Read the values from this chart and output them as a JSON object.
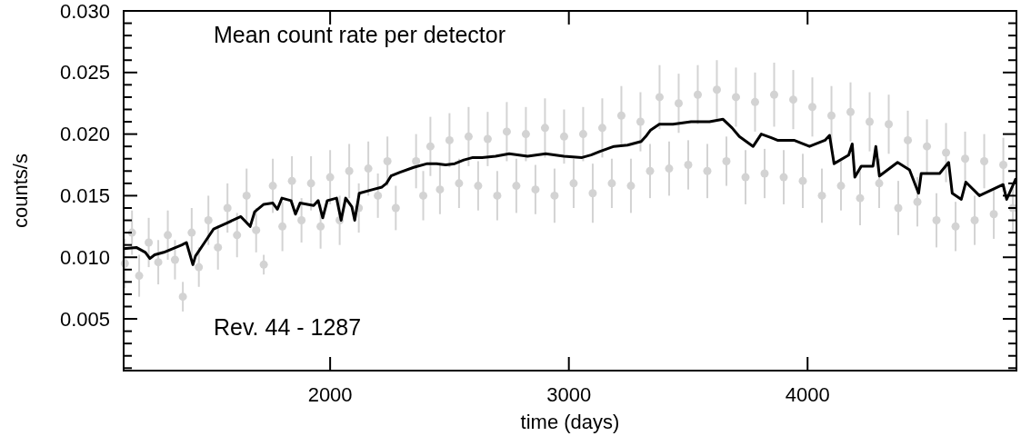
{
  "chart_data": {
    "type": "line",
    "title": "Mean count rate per detector",
    "xlabel": "time (days)",
    "ylabel": "counts/s",
    "annotations": [
      "Rev. 44 - 1287"
    ],
    "xlim": [
      1135,
      4875
    ],
    "xticks": [
      2000,
      3000,
      4000
    ],
    "ylim": [
      0.0008,
      0.03
    ],
    "yticks": [
      {
        "value": 0.001,
        "label": null
      },
      {
        "value": 0.002,
        "label": null
      },
      {
        "value": 0.003,
        "label": null
      },
      {
        "value": 0.004,
        "label": null
      },
      0.005,
      {
        "value": 0.006,
        "label": null
      },
      {
        "value": 0.007,
        "label": null
      },
      {
        "value": 0.008,
        "label": null
      },
      {
        "value": 0.009,
        "label": null
      },
      {
        "value": 0.01,
        "label": "0.010"
      },
      {
        "value": 0.011,
        "label": null
      },
      {
        "value": 0.012,
        "label": null
      },
      {
        "value": 0.013,
        "label": null
      },
      {
        "value": 0.014,
        "label": null
      },
      0.015,
      {
        "value": 0.016,
        "label": null
      },
      {
        "value": 0.017,
        "label": null
      },
      {
        "value": 0.018,
        "label": null
      },
      {
        "value": 0.019,
        "label": null
      },
      {
        "value": 0.02,
        "label": "0.020"
      },
      {
        "value": 0.021,
        "label": null
      },
      {
        "value": 0.022,
        "label": null
      },
      {
        "value": 0.023,
        "label": null
      },
      {
        "value": 0.024,
        "label": null
      },
      0.025,
      {
        "value": 0.026,
        "label": null
      },
      {
        "value": 0.027,
        "label": null
      },
      {
        "value": 0.028,
        "label": null
      },
      {
        "value": 0.029,
        "label": null
      },
      {
        "value": 0.03,
        "label": "0.030"
      }
    ],
    "grid": false,
    "series": [
      {
        "type": "scatter",
        "color": "#d3d3d3",
        "marker": "circle",
        "x": [
          1140,
          1170,
          1200,
          1240,
          1280,
          1320,
          1350,
          1383,
          1420,
          1450,
          1490,
          1530,
          1570,
          1610,
          1650,
          1690,
          1722,
          1760,
          1800,
          1840,
          1880,
          1920,
          1960,
          2000,
          2040,
          2080,
          2120,
          2160,
          2200,
          2240,
          2275,
          2360,
          2390,
          2420,
          2460,
          2500,
          2540,
          2580,
          2620,
          2660,
          2700,
          2740,
          2780,
          2820,
          2860,
          2900,
          2940,
          2980,
          3020,
          3060,
          3100,
          3140,
          3180,
          3220,
          3260,
          3300,
          3340,
          3380,
          3420,
          3460,
          3500,
          3540,
          3580,
          3620,
          3660,
          3700,
          3740,
          3780,
          3820,
          3860,
          3900,
          3940,
          3980,
          4020,
          4060,
          4100,
          4140,
          4180,
          4220,
          4260,
          4300,
          4340,
          4380,
          4420,
          4460,
          4500,
          4540,
          4580,
          4620,
          4660,
          4700,
          4740,
          4780,
          4820,
          4860
        ],
        "values": [
          0.0095,
          0.012,
          0.0085,
          0.0112,
          0.0096,
          0.0118,
          0.0098,
          0.0068,
          0.012,
          0.0092,
          0.013,
          0.0108,
          0.014,
          0.0118,
          0.015,
          0.0122,
          0.0094,
          0.0158,
          0.0125,
          0.0162,
          0.013,
          0.016,
          0.0125,
          0.0165,
          0.013,
          0.017,
          0.014,
          0.0172,
          0.015,
          0.0178,
          0.014,
          0.0178,
          0.015,
          0.019,
          0.0155,
          0.0195,
          0.016,
          0.0198,
          0.0158,
          0.0196,
          0.015,
          0.0202,
          0.0158,
          0.02,
          0.0155,
          0.0205,
          0.015,
          0.0198,
          0.016,
          0.02,
          0.0152,
          0.0205,
          0.016,
          0.0215,
          0.0158,
          0.021,
          0.017,
          0.023,
          0.0172,
          0.0225,
          0.0175,
          0.0232,
          0.017,
          0.0236,
          0.0178,
          0.023,
          0.0165,
          0.0226,
          0.0168,
          0.0232,
          0.0165,
          0.0228,
          0.0162,
          0.0222,
          0.015,
          0.0215,
          0.0158,
          0.0218,
          0.0148,
          0.021,
          0.016,
          0.0208,
          0.014,
          0.0195,
          0.0145,
          0.019,
          0.013,
          0.0185,
          0.0125,
          0.018,
          0.013,
          0.0178,
          0.0135,
          0.0175,
          0.014
        ],
        "errors": [
          0.002,
          0.0018,
          0.0017,
          0.002,
          0.0018,
          0.002,
          0.0016,
          0.0012,
          0.002,
          0.0016,
          0.002,
          0.0018,
          0.002,
          0.0018,
          0.0022,
          0.0018,
          0.0008,
          0.0022,
          0.002,
          0.002,
          0.0018,
          0.0022,
          0.0018,
          0.0022,
          0.002,
          0.0022,
          0.002,
          0.0022,
          0.0018,
          0.002,
          0.0018,
          0.0022,
          0.002,
          0.0024,
          0.002,
          0.0022,
          0.002,
          0.0024,
          0.002,
          0.0022,
          0.002,
          0.0024,
          0.0022,
          0.0022,
          0.002,
          0.0024,
          0.0022,
          0.0022,
          0.002,
          0.0022,
          0.0024,
          0.0024,
          0.002,
          0.0024,
          0.0022,
          0.0024,
          0.0022,
          0.0026,
          0.0022,
          0.0024,
          0.002,
          0.0024,
          0.0022,
          0.0024,
          0.002,
          0.0024,
          0.0022,
          0.0024,
          0.002,
          0.0026,
          0.0022,
          0.0024,
          0.0022,
          0.0024,
          0.0022,
          0.0024,
          0.002,
          0.0024,
          0.0022,
          0.0024,
          0.002,
          0.0024,
          0.0022,
          0.0024,
          0.002,
          0.0022,
          0.0022,
          0.0024,
          0.002,
          0.0022,
          0.002,
          0.0022,
          0.002,
          0.0022,
          0.002
        ]
      },
      {
        "color": "#000000",
        "line_style": "solid",
        "x": [
          1135,
          1188,
          1226,
          1245,
          1265,
          1303,
          1379,
          1398,
          1425,
          1436,
          1474,
          1512,
          1569,
          1626,
          1665,
          1684,
          1722,
          1760,
          1779,
          1798,
          1836,
          1855,
          1874,
          1931,
          1950,
          1969,
          1988,
          2027,
          2046,
          2065,
          2091,
          2103,
          2122,
          2179,
          2217,
          2236,
          2255,
          2293,
          2350,
          2407,
          2446,
          2484,
          2522,
          2560,
          2598,
          2636,
          2693,
          2750,
          2827,
          2903,
          2979,
          3055,
          3093,
          3131,
          3189,
          3246,
          3303,
          3322,
          3341,
          3379,
          3436,
          3512,
          3589,
          3646,
          3684,
          3714,
          3772,
          3806,
          3848,
          3874,
          3943,
          4008,
          4073,
          4092,
          4111,
          4172,
          4187,
          4198,
          4225,
          4274,
          4286,
          4301,
          4377,
          4427,
          4465,
          4476,
          4553,
          4591,
          4606,
          4644,
          4663,
          4720,
          4819,
          4834,
          4873
        ],
        "values": [
          0.0107,
          0.0108,
          0.0104,
          0.0099,
          0.0102,
          0.0104,
          0.011,
          0.0112,
          0.0094,
          0.0101,
          0.0112,
          0.0123,
          0.0128,
          0.0133,
          0.0125,
          0.0137,
          0.0143,
          0.0144,
          0.0139,
          0.0148,
          0.0146,
          0.0135,
          0.0144,
          0.0142,
          0.0146,
          0.0132,
          0.0146,
          0.0148,
          0.013,
          0.0148,
          0.0141,
          0.013,
          0.0152,
          0.0155,
          0.0157,
          0.016,
          0.0166,
          0.0169,
          0.0173,
          0.0176,
          0.0176,
          0.0175,
          0.0176,
          0.0179,
          0.0181,
          0.0181,
          0.0182,
          0.0184,
          0.0182,
          0.0184,
          0.0182,
          0.0181,
          0.0183,
          0.0186,
          0.019,
          0.0191,
          0.0194,
          0.0198,
          0.0203,
          0.0208,
          0.0208,
          0.021,
          0.021,
          0.0212,
          0.0205,
          0.0198,
          0.019,
          0.02,
          0.0197,
          0.0195,
          0.0195,
          0.019,
          0.0195,
          0.0199,
          0.0176,
          0.0183,
          0.0192,
          0.0165,
          0.0174,
          0.0174,
          0.019,
          0.0166,
          0.0177,
          0.0171,
          0.0152,
          0.0168,
          0.0168,
          0.0177,
          0.0152,
          0.0147,
          0.0161,
          0.015,
          0.0159,
          0.0147,
          0.0164
        ]
      }
    ]
  }
}
